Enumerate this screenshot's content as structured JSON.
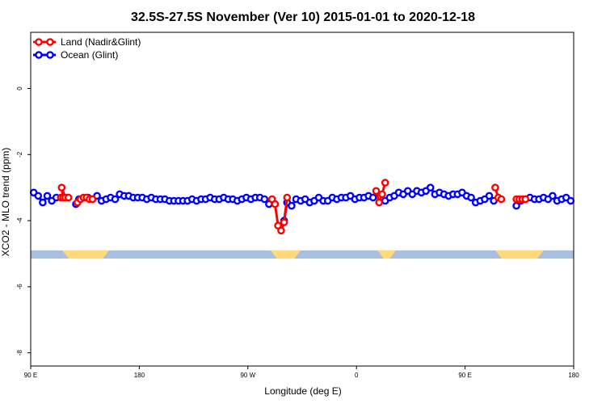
{
  "chart_data": {
    "type": "line",
    "title": "32.5S-27.5S November (Ver 10)   2015-01-01 to 2020-12-18",
    "xlabel": "Longitude (deg E)",
    "ylabel": "XCO2 - MLO trend (ppm)",
    "xlim": [
      90,
      450
    ],
    "ylim": [
      -8.4,
      1.7
    ],
    "x_ticks": [
      {
        "value": 90,
        "label": "90 E"
      },
      {
        "value": 162,
        "label": "180"
      },
      {
        "value": 234,
        "label": "90 W"
      },
      {
        "value": 306,
        "label": "0"
      },
      {
        "value": 378,
        "label": "90 E"
      },
      {
        "value": 450,
        "label": "180"
      }
    ],
    "y_ticks": [
      {
        "value": 0,
        "label": "0"
      },
      {
        "value": -2,
        "label": "-2"
      },
      {
        "value": -4,
        "label": "-4"
      },
      {
        "value": -6,
        "label": "-6"
      },
      {
        "value": -8,
        "label": "-8"
      }
    ],
    "grid": false,
    "legend_position": "top-left",
    "colors": {
      "land": "#ff0000",
      "ocean": "#0000ff",
      "ocean_band": "#a9bfdf",
      "land_band": "#ffd97a"
    },
    "band": {
      "y_range": [
        -5.15,
        -4.9
      ],
      "land_segments": [
        [
          111,
          142
        ],
        [
          249,
          269
        ],
        [
          320,
          332
        ],
        [
          398,
          430
        ]
      ]
    },
    "series": [
      {
        "name": "Land (Nadir&Glint)",
        "color": "#ff0000",
        "segments": [
          [
            [
              110,
              -3.3
            ],
            [
              111.5,
              -3.3
            ],
            [
              110.5,
              -3.0
            ],
            [
              113,
              -3.3
            ],
            [
              115,
              -3.3
            ]
          ],
          [
            [
              121,
              -3.45
            ],
            [
              123,
              -3.35
            ],
            [
              125,
              -3.3
            ],
            [
              127,
              -3.3
            ],
            [
              129,
              -3.35
            ],
            [
              131,
              -3.35
            ]
          ],
          [
            [
              250,
              -3.35
            ],
            [
              252,
              -3.5
            ],
            [
              254,
              -4.15
            ],
            [
              256,
              -4.3
            ],
            [
              258,
              -4.05
            ],
            [
              260,
              -3.3
            ]
          ],
          [
            [
              319,
              -3.1
            ],
            [
              321,
              -3.45
            ],
            [
              323,
              -3.2
            ],
            [
              325,
              -2.85
            ]
          ],
          [
            [
              398,
              -3.0
            ],
            [
              400,
              -3.3
            ],
            [
              402,
              -3.35
            ]
          ],
          [
            [
              412,
              -3.35
            ],
            [
              414,
              -3.35
            ],
            [
              416,
              -3.35
            ],
            [
              418,
              -3.35
            ]
          ]
        ]
      },
      {
        "name": "Ocean (Glint)",
        "color": "#0000ff",
        "segments": [
          [
            [
              92,
              -3.15
            ],
            [
              95,
              -3.25
            ],
            [
              98,
              -3.45
            ],
            [
              101,
              -3.25
            ],
            [
              104,
              -3.4
            ],
            [
              107,
              -3.3
            ]
          ],
          [
            [
              120,
              -3.5
            ],
            [
              122,
              -3.35
            ],
            [
              128,
              -3.3
            ],
            [
              131,
              -3.35
            ],
            [
              134,
              -3.25
            ],
            [
              137,
              -3.4
            ],
            [
              140,
              -3.35
            ],
            [
              143,
              -3.3
            ],
            [
              146,
              -3.35
            ],
            [
              149,
              -3.2
            ],
            [
              152,
              -3.25
            ],
            [
              155,
              -3.25
            ],
            [
              158,
              -3.3
            ],
            [
              161,
              -3.3
            ],
            [
              164,
              -3.3
            ],
            [
              167,
              -3.35
            ],
            [
              170,
              -3.3
            ],
            [
              173,
              -3.35
            ],
            [
              176,
              -3.35
            ],
            [
              179,
              -3.35
            ],
            [
              182,
              -3.4
            ],
            [
              185,
              -3.4
            ],
            [
              188,
              -3.4
            ],
            [
              191,
              -3.4
            ],
            [
              194,
              -3.4
            ],
            [
              197,
              -3.35
            ],
            [
              200,
              -3.4
            ],
            [
              203,
              -3.35
            ],
            [
              206,
              -3.35
            ],
            [
              209,
              -3.3
            ],
            [
              212,
              -3.35
            ],
            [
              215,
              -3.35
            ],
            [
              218,
              -3.3
            ],
            [
              221,
              -3.35
            ],
            [
              224,
              -3.35
            ],
            [
              227,
              -3.4
            ],
            [
              230,
              -3.35
            ],
            [
              233,
              -3.3
            ],
            [
              236,
              -3.35
            ],
            [
              239,
              -3.3
            ],
            [
              242,
              -3.3
            ],
            [
              245,
              -3.35
            ],
            [
              248,
              -3.5
            ]
          ],
          [
            [
              258,
              -4.0
            ],
            [
              260,
              -3.45
            ],
            [
              263,
              -3.55
            ],
            [
              266,
              -3.35
            ],
            [
              269,
              -3.4
            ],
            [
              272,
              -3.35
            ],
            [
              275,
              -3.45
            ],
            [
              278,
              -3.4
            ],
            [
              281,
              -3.3
            ],
            [
              284,
              -3.4
            ],
            [
              287,
              -3.4
            ],
            [
              290,
              -3.3
            ],
            [
              293,
              -3.35
            ],
            [
              296,
              -3.3
            ],
            [
              299,
              -3.3
            ],
            [
              302,
              -3.25
            ],
            [
              305,
              -3.35
            ],
            [
              308,
              -3.3
            ],
            [
              311,
              -3.3
            ],
            [
              314,
              -3.25
            ],
            [
              317,
              -3.3
            ]
          ],
          [
            [
              325,
              -3.4
            ],
            [
              328,
              -3.3
            ],
            [
              331,
              -3.25
            ],
            [
              334,
              -3.15
            ],
            [
              337,
              -3.2
            ],
            [
              340,
              -3.1
            ],
            [
              343,
              -3.2
            ],
            [
              346,
              -3.1
            ],
            [
              349,
              -3.15
            ],
            [
              352,
              -3.1
            ],
            [
              355,
              -3.0
            ],
            [
              358,
              -3.2
            ],
            [
              361,
              -3.15
            ],
            [
              364,
              -3.2
            ],
            [
              367,
              -3.25
            ],
            [
              370,
              -3.2
            ],
            [
              373,
              -3.2
            ],
            [
              376,
              -3.15
            ],
            [
              379,
              -3.25
            ],
            [
              382,
              -3.3
            ],
            [
              385,
              -3.45
            ],
            [
              388,
              -3.4
            ],
            [
              391,
              -3.35
            ],
            [
              394,
              -3.25
            ],
            [
              397,
              -3.4
            ]
          ],
          [
            [
              412,
              -3.55
            ],
            [
              415,
              -3.4
            ],
            [
              418,
              -3.35
            ],
            [
              421,
              -3.3
            ],
            [
              424,
              -3.35
            ],
            [
              427,
              -3.35
            ],
            [
              430,
              -3.3
            ],
            [
              433,
              -3.35
            ],
            [
              436,
              -3.25
            ],
            [
              439,
              -3.4
            ],
            [
              442,
              -3.35
            ],
            [
              445,
              -3.3
            ],
            [
              448,
              -3.4
            ]
          ]
        ]
      }
    ]
  }
}
